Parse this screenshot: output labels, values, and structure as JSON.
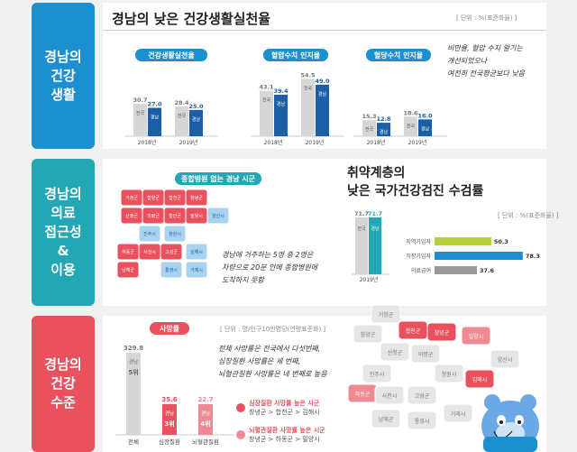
{
  "side_labels": [
    {
      "lines": [
        "경남의",
        "건강",
        "생활"
      ],
      "color": "#1c8fd0"
    },
    {
      "lines": [
        "경남의",
        "의료",
        "접근성",
        "&",
        "이용"
      ],
      "color": "#23a7b5"
    },
    {
      "lines": [
        "경남의",
        "건강",
        "수준"
      ],
      "color": "#e8515d"
    }
  ],
  "section1": {
    "title": "경남의 낮은 건강생활실천율",
    "unit": "[ 단위 : %(표준화율) ]",
    "note_lines": [
      "비만율, 혈압 수치 알기는",
      "개선되었으나",
      "여전히 전국평균보다 낮음"
    ]
  },
  "section2": {
    "map_title": "종합병원 없는 경남 시군",
    "note_lines": [
      "경남에 거주하는 5명 중 2명은",
      "차량으로 20분 안에 종합병원에",
      "도착하지 못함"
    ],
    "title_lines": [
      "취약계층의",
      "낮은 국가건강검진 수검률"
    ],
    "unit": "[ 단위 : %(표준화율) ]",
    "map_regions": [
      "거창군",
      "함양군",
      "합천군",
      "창녕군",
      "산청군",
      "의령군",
      "함안군",
      "밀양시",
      "양산시",
      "진주시",
      "창원시",
      "하동군",
      "사천시",
      "고성군",
      "김해시",
      "남해군",
      "통영시",
      "거제시"
    ]
  },
  "section3": {
    "unit": "[ 단위 : 명/인구10만명당(연령표준화) ]",
    "note_lines": [
      "전체 사망률은 전국에서 다섯번째,",
      "심장질환 사망률은 세 번째,",
      "뇌혈관질환 사망률은 네 번째로 높음"
    ],
    "legend": [
      {
        "title": "심장질환 사망률 높은 시군",
        "detail": "창녕군 > 합천군 > 김해시",
        "color": "#e8515d"
      },
      {
        "title": "뇌혈관질환 사망률 높은 시군",
        "detail": "창녕군 > 하동군 > 밀양시",
        "color": "#f08a92"
      }
    ],
    "map_regions": [
      "거창군",
      "함양군",
      "합천군",
      "창녕군",
      "밀양시",
      "산청군",
      "의령군",
      "진주시",
      "창원시",
      "김해시",
      "하동군",
      "사천시",
      "고성군",
      "양산시",
      "남해군",
      "통영시",
      "거제시"
    ]
  },
  "chart_data": [
    {
      "type": "bar",
      "title": "건강생활실천율",
      "categories": [
        "2018년",
        "2019년"
      ],
      "series": [
        {
          "name": "전국",
          "values": [
            30.7,
            28.4
          ]
        },
        {
          "name": "경남",
          "values": [
            27.0,
            25.0
          ]
        }
      ],
      "ylim": [
        0,
        60
      ]
    },
    {
      "type": "bar",
      "title": "혈압수치 인지율",
      "categories": [
        "2018년",
        "2019년"
      ],
      "series": [
        {
          "name": "전국",
          "values": [
            43.1,
            54.5
          ]
        },
        {
          "name": "경남",
          "values": [
            39.4,
            49.0
          ]
        }
      ],
      "ylim": [
        0,
        60
      ]
    },
    {
      "type": "bar",
      "title": "혈당수치 인지율",
      "categories": [
        "2018년",
        "2019년"
      ],
      "series": [
        {
          "name": "전국",
          "values": [
            15.3,
            18.6
          ]
        },
        {
          "name": "경남",
          "values": [
            12.8,
            16.0
          ]
        }
      ],
      "ylim": [
        0,
        60
      ]
    },
    {
      "type": "bar",
      "title": "",
      "categories": [
        "2019년"
      ],
      "series": [
        {
          "name": "전국",
          "values": [
            71.7
          ]
        },
        {
          "name": "경남",
          "values": [
            71.7
          ]
        }
      ],
      "ylim": [
        0,
        75
      ]
    },
    {
      "type": "bar",
      "orientation": "horizontal",
      "title": "",
      "categories": [
        "지역가입자",
        "직장가입자",
        "의료급여"
      ],
      "values": [
        50.3,
        78.3,
        37.6
      ],
      "colors": [
        "#b5d334",
        "#1c8fd0",
        "#9a9a9a"
      ],
      "xlim": [
        0,
        80
      ]
    },
    {
      "type": "bar",
      "title": "사망률",
      "categories": [
        "전체",
        "심장질환",
        "뇌혈관질환"
      ],
      "values": [
        329.8,
        35.6,
        22.7
      ],
      "ranks": [
        "5위",
        "3위",
        "4위"
      ],
      "rank_region": "경남",
      "ylim": [
        0,
        340
      ]
    }
  ]
}
